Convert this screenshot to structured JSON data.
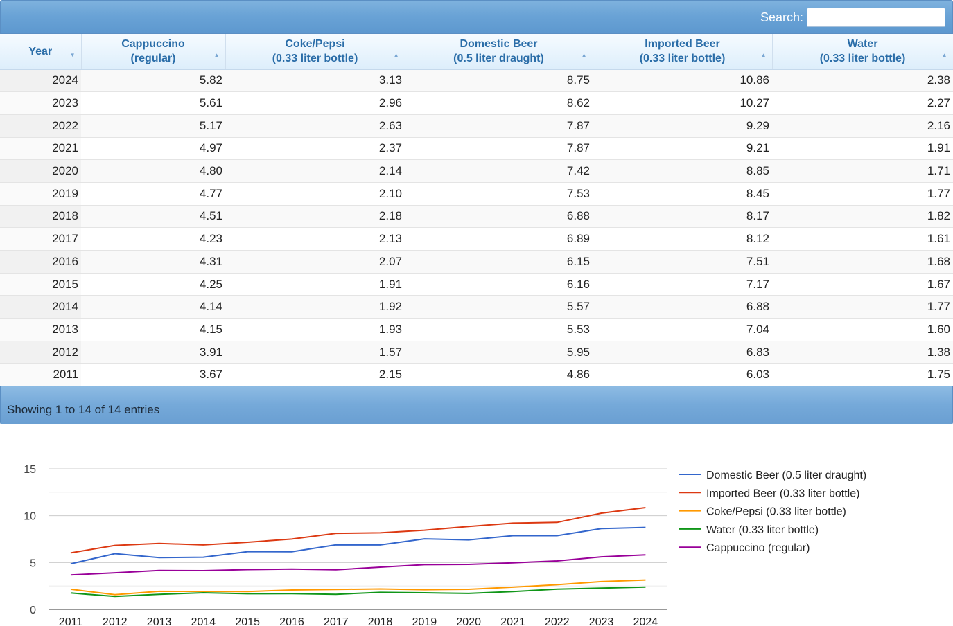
{
  "search": {
    "label": "Search:",
    "value": "",
    "placeholder": ""
  },
  "table": {
    "headers": [
      {
        "line1": "Year",
        "line2": ""
      },
      {
        "line1": "Cappuccino",
        "line2": "(regular)"
      },
      {
        "line1": "Coke/Pepsi",
        "line2": "(0.33 liter bottle)"
      },
      {
        "line1": "Domestic Beer",
        "line2": "(0.5 liter draught)"
      },
      {
        "line1": "Imported Beer",
        "line2": "(0.33 liter bottle)"
      },
      {
        "line1": "Water",
        "line2": "(0.33 liter bottle)"
      }
    ],
    "rows": [
      [
        "2024",
        "5.82",
        "3.13",
        "8.75",
        "10.86",
        "2.38"
      ],
      [
        "2023",
        "5.61",
        "2.96",
        "8.62",
        "10.27",
        "2.27"
      ],
      [
        "2022",
        "5.17",
        "2.63",
        "7.87",
        "9.29",
        "2.16"
      ],
      [
        "2021",
        "4.97",
        "2.37",
        "7.87",
        "9.21",
        "1.91"
      ],
      [
        "2020",
        "4.80",
        "2.14",
        "7.42",
        "8.85",
        "1.71"
      ],
      [
        "2019",
        "4.77",
        "2.10",
        "7.53",
        "8.45",
        "1.77"
      ],
      [
        "2018",
        "4.51",
        "2.18",
        "6.88",
        "8.17",
        "1.82"
      ],
      [
        "2017",
        "4.23",
        "2.13",
        "6.89",
        "8.12",
        "1.61"
      ],
      [
        "2016",
        "4.31",
        "2.07",
        "6.15",
        "7.51",
        "1.68"
      ],
      [
        "2015",
        "4.25",
        "1.91",
        "6.16",
        "7.17",
        "1.67"
      ],
      [
        "2014",
        "4.14",
        "1.92",
        "5.57",
        "6.88",
        "1.77"
      ],
      [
        "2013",
        "4.15",
        "1.93",
        "5.53",
        "7.04",
        "1.60"
      ],
      [
        "2012",
        "3.91",
        "1.57",
        "5.95",
        "6.83",
        "1.38"
      ],
      [
        "2011",
        "3.67",
        "2.15",
        "4.86",
        "6.03",
        "1.75"
      ]
    ]
  },
  "footer": {
    "info": "Showing 1 to 14 of 14 entries"
  },
  "chart_data": {
    "type": "line",
    "x": [
      "2011",
      "2012",
      "2013",
      "2014",
      "2015",
      "2016",
      "2017",
      "2018",
      "2019",
      "2020",
      "2021",
      "2022",
      "2023",
      "2024"
    ],
    "ylim": [
      0,
      15
    ],
    "yticks": [
      "0",
      "5",
      "10",
      "15"
    ],
    "grid": true,
    "legend": "right",
    "series": [
      {
        "name": "Domestic Beer (0.5 liter draught)",
        "color": "#3366cc",
        "values": [
          4.86,
          5.95,
          5.53,
          5.57,
          6.16,
          6.15,
          6.89,
          6.88,
          7.53,
          7.42,
          7.87,
          7.87,
          8.62,
          8.75
        ]
      },
      {
        "name": "Imported Beer (0.33 liter bottle)",
        "color": "#dc3912",
        "values": [
          6.03,
          6.83,
          7.04,
          6.88,
          7.17,
          7.51,
          8.12,
          8.17,
          8.45,
          8.85,
          9.21,
          9.29,
          10.27,
          10.86
        ]
      },
      {
        "name": "Coke/Pepsi (0.33 liter bottle)",
        "color": "#ff9900",
        "values": [
          2.15,
          1.57,
          1.93,
          1.92,
          1.91,
          2.07,
          2.13,
          2.18,
          2.1,
          2.14,
          2.37,
          2.63,
          2.96,
          3.13
        ]
      },
      {
        "name": "Water (0.33 liter bottle)",
        "color": "#109618",
        "values": [
          1.75,
          1.38,
          1.6,
          1.77,
          1.67,
          1.68,
          1.61,
          1.82,
          1.77,
          1.71,
          1.91,
          2.16,
          2.27,
          2.38
        ]
      },
      {
        "name": "Cappuccino (regular)",
        "color": "#990099",
        "values": [
          3.67,
          3.91,
          4.15,
          4.14,
          4.25,
          4.31,
          4.23,
          4.51,
          4.77,
          4.8,
          4.97,
          5.17,
          5.61,
          5.82
        ]
      }
    ]
  }
}
